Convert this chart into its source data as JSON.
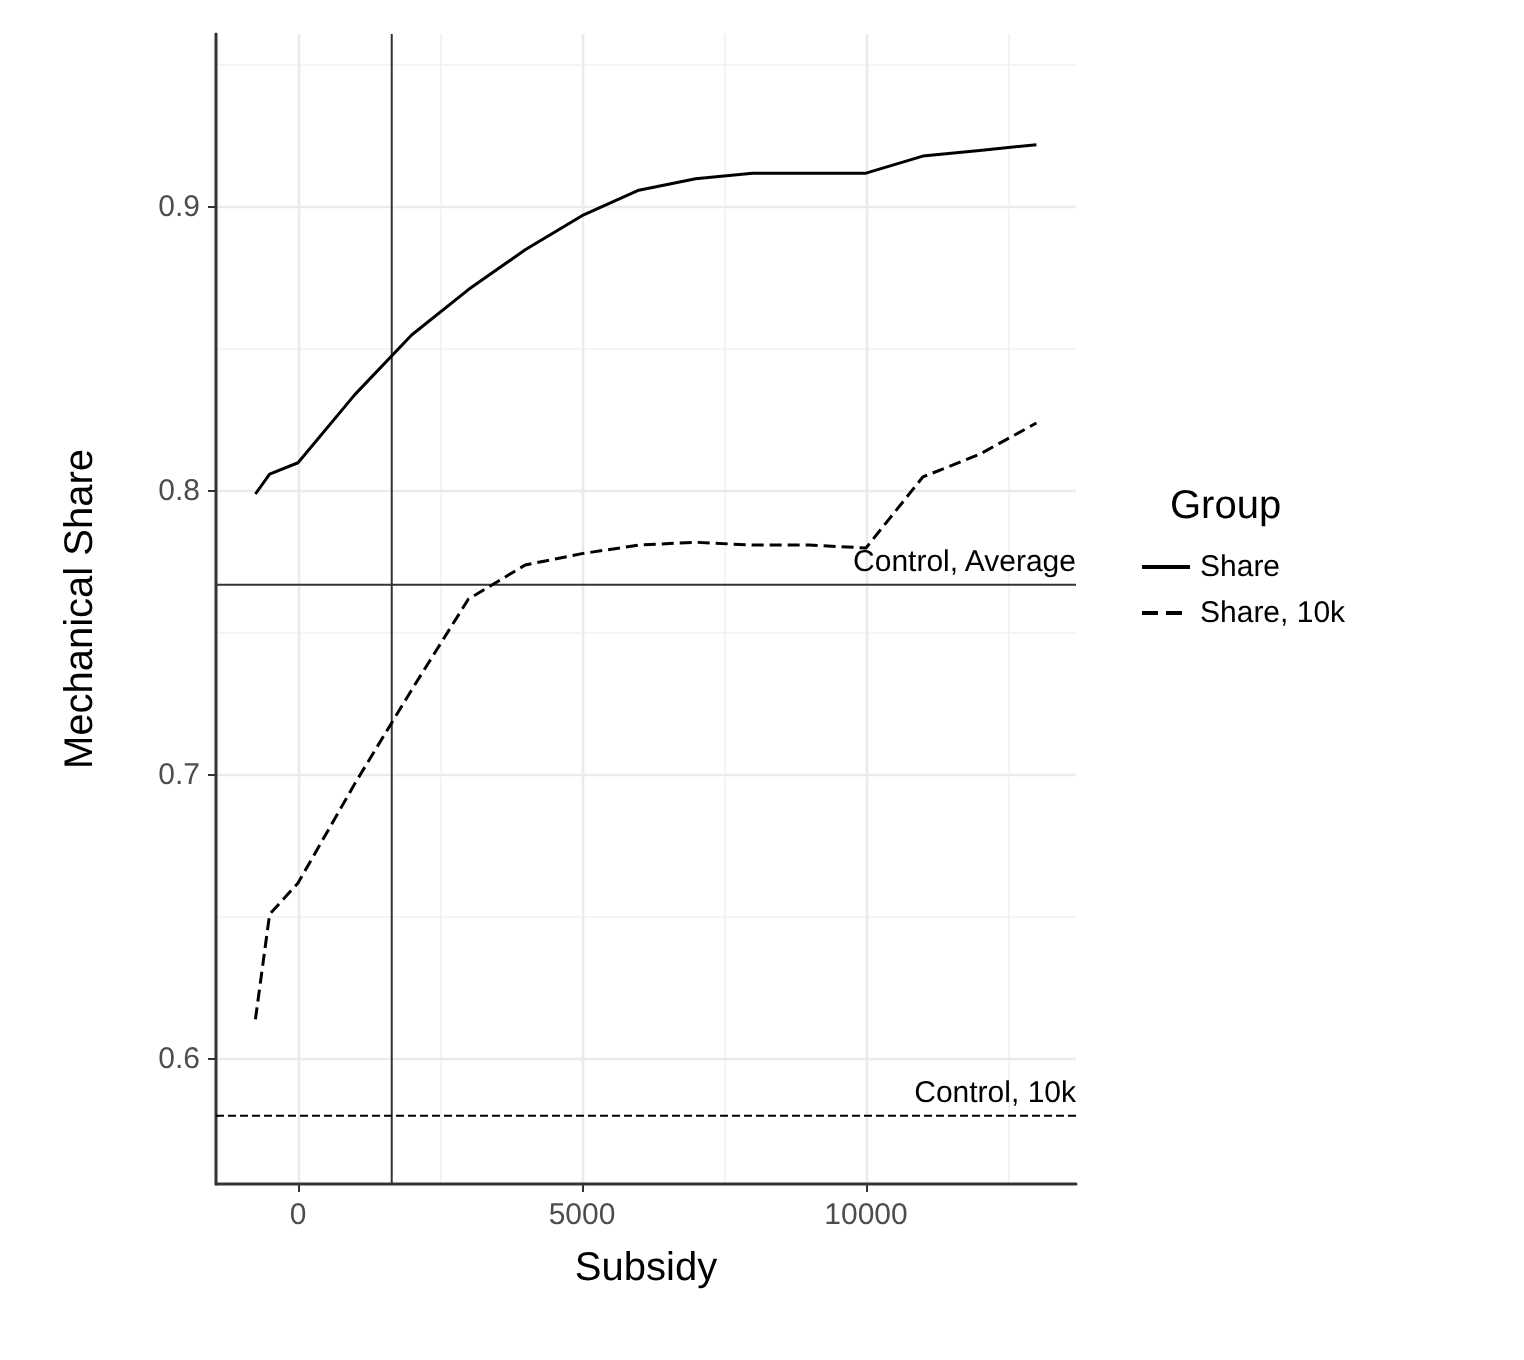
{
  "chart_data": {
    "type": "line",
    "xlabel": "Subsidy",
    "ylabel": "Mechanical Share",
    "legend_title": "Group",
    "x": [
      -750,
      -500,
      0,
      1000,
      2000,
      3000,
      4000,
      5000,
      6000,
      7000,
      8000,
      9000,
      10000,
      11000,
      12000,
      13000
    ],
    "series": [
      {
        "name": "Share",
        "color": "#000000",
        "line_style": "solid",
        "values": [
          0.799,
          0.806,
          0.81,
          0.834,
          0.855,
          0.871,
          0.885,
          0.897,
          0.906,
          0.91,
          0.912,
          0.912,
          0.912,
          0.918,
          0.92,
          0.922
        ]
      },
      {
        "name": "Share, 10k",
        "color": "#000000",
        "line_style": "dashed",
        "values": [
          0.614,
          0.651,
          0.662,
          0.697,
          0.73,
          0.762,
          0.774,
          0.778,
          0.781,
          0.782,
          0.781,
          0.781,
          0.78,
          0.805,
          0.813,
          0.824
        ]
      }
    ],
    "xlim": [
      -1444,
      13697
    ],
    "xticks": [
      0,
      5000,
      10000
    ],
    "ylim": [
      0.556,
      0.961
    ],
    "yticks": [
      0.6,
      0.7,
      0.8,
      0.9
    ],
    "ref_lines": [
      {
        "axis": "x",
        "value": 1650,
        "color": "#333333",
        "line_style": "solid"
      },
      {
        "axis": "y",
        "value": 0.767,
        "label": "Control, Average",
        "color": "#333333",
        "line_style": "solid"
      },
      {
        "axis": "y",
        "value": 0.58,
        "label": "Control, 10k",
        "color": "#000000",
        "line_style": "dashed"
      }
    ],
    "grid": true,
    "legend": "right",
    "marker": "none"
  }
}
